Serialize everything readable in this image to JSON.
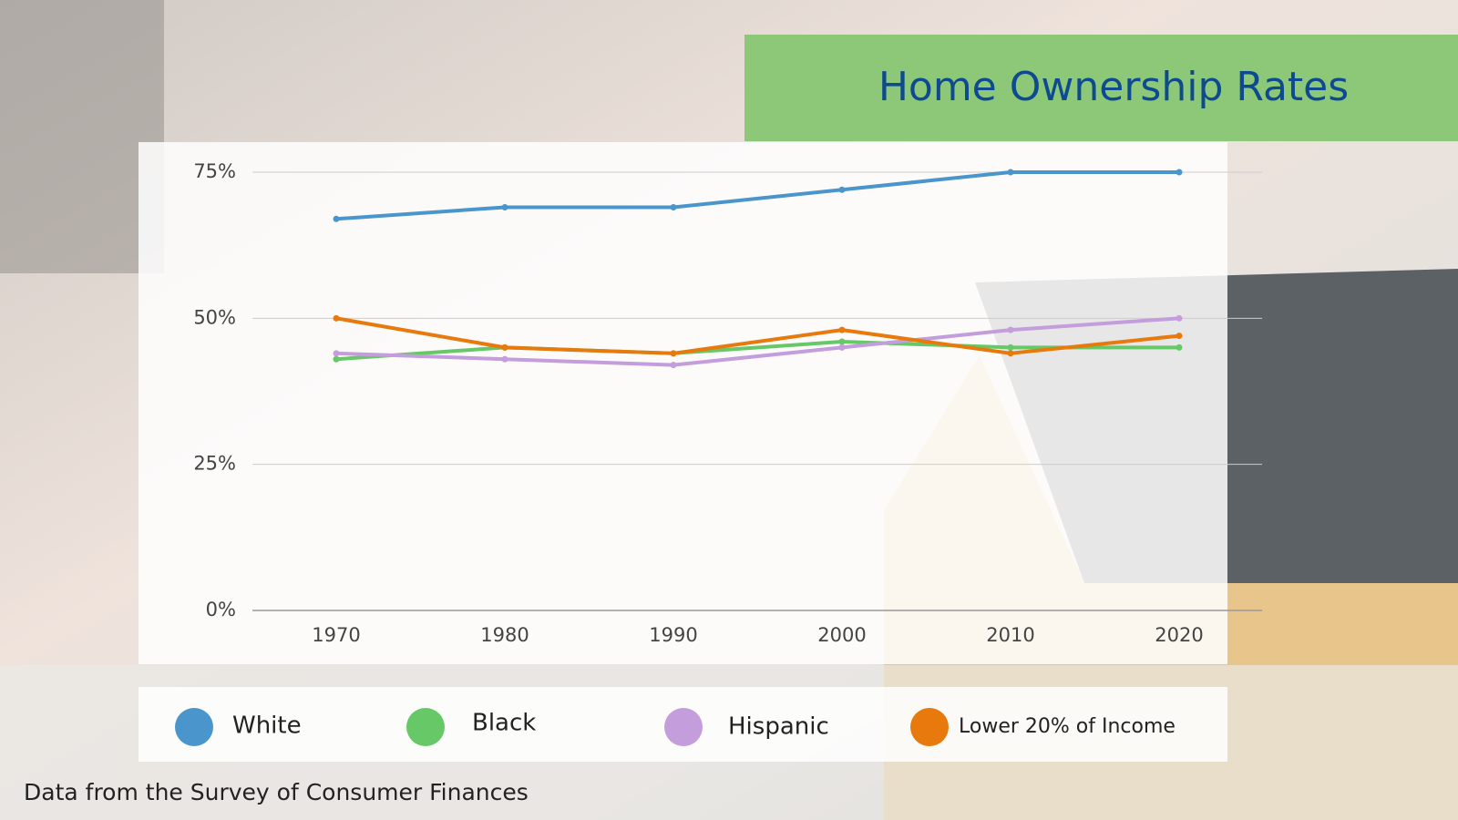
{
  "chart_data": {
    "type": "line",
    "title": "Home Ownership Rates",
    "categories": [
      "1970",
      "1980",
      "1990",
      "2000",
      "2010",
      "2020"
    ],
    "series": [
      {
        "name": "White",
        "color": "#4a96cc",
        "values": [
          67,
          69,
          69,
          72,
          75,
          75
        ]
      },
      {
        "name": "Black",
        "color": "#66c866",
        "values": [
          43,
          45,
          44,
          46,
          45,
          45
        ]
      },
      {
        "name": "Hispanic",
        "color": "#c39ddc",
        "values": [
          44,
          43,
          42,
          45,
          48,
          50
        ]
      },
      {
        "name": "Lower 20% of Income",
        "color": "#e8790c",
        "values": [
          50,
          45,
          44,
          48,
          44,
          47
        ]
      }
    ],
    "ylim": [
      0,
      75
    ],
    "yticks": [
      {
        "value": 0,
        "label": "0%"
      },
      {
        "value": 25,
        "label": "25%"
      },
      {
        "value": 50,
        "label": "50%"
      },
      {
        "value": 75,
        "label": "75%"
      }
    ],
    "grid": true,
    "legend": "bottom",
    "source": "Data from the Survey of Consumer Finances"
  }
}
